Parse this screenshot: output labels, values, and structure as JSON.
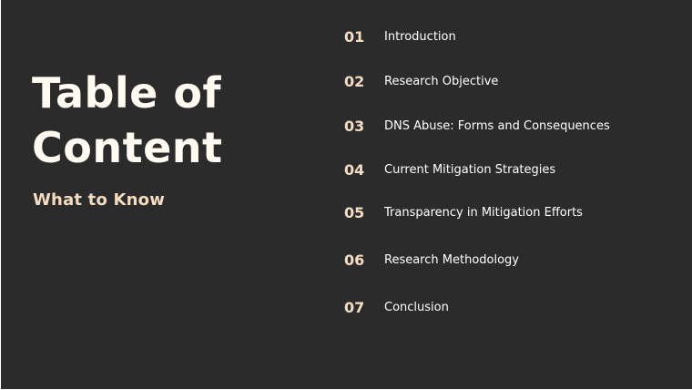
{
  "slide": {
    "title_line1": "Table of",
    "title_line2": "Content",
    "subtitle": "What to Know"
  },
  "toc": [
    {
      "number": "01",
      "label": "Introduction"
    },
    {
      "number": "02",
      "label": "Research Objective"
    },
    {
      "number": "03",
      "label": "DNS Abuse: Forms and Consequences"
    },
    {
      "number": "04",
      "label": "Current Mitigation Strategies"
    },
    {
      "number": "05",
      "label": "Transparency in Mitigation Efforts"
    },
    {
      "number": "06",
      "label": "Research Methodology"
    },
    {
      "number": "07",
      "label": "Conclusion"
    }
  ],
  "colors": {
    "background": "#2b2b2b",
    "title": "#fffaf2",
    "accent": "#f3dcc2",
    "text": "#ffffff"
  }
}
